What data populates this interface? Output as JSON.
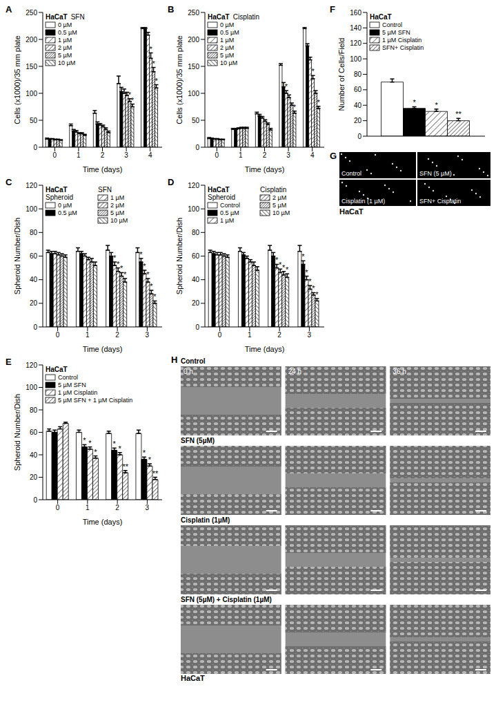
{
  "chart_data": [
    {
      "type": "bar",
      "panel_label": "A",
      "title": "HaCaT",
      "subtitle": "SFN",
      "x_label": "Time (days)",
      "y_label": "Cells (x1000)/35 mm plate",
      "categories": [
        "0",
        "1",
        "2",
        "3",
        "4"
      ],
      "ylim": [
        0,
        250
      ],
      "yticks": [
        0,
        50,
        100,
        150,
        200,
        250
      ],
      "series": [
        {
          "name": "0 µM",
          "color": "#ffffff",
          "values": [
            15,
            40,
            63,
            118,
            220
          ],
          "errors": [
            2,
            3,
            5,
            14,
            2
          ],
          "significance": [
            null,
            null,
            null,
            null,
            null
          ]
        },
        {
          "name": "0.5 µM",
          "color": "#000000",
          "values": [
            15,
            30,
            43,
            103,
            220
          ],
          "errors": [
            1,
            3,
            4,
            8,
            2
          ],
          "significance": [
            null,
            null,
            null,
            null,
            null
          ]
        },
        {
          "name": "1 µM",
          "color": "#ffffff",
          "values": [
            15,
            28,
            41,
            100,
            208
          ],
          "errors": [
            1,
            3,
            3,
            8,
            5
          ],
          "significance": [
            null,
            null,
            null,
            null,
            null
          ]
        },
        {
          "name": "2 µM",
          "color": "#ffffff",
          "values": [
            14,
            25,
            38,
            96,
            165
          ],
          "errors": [
            1,
            2,
            3,
            6,
            10
          ],
          "significance": [
            null,
            null,
            null,
            null,
            "*"
          ]
        },
        {
          "name": "5 µM",
          "color": "#ffffff",
          "values": [
            14,
            25,
            33,
            85,
            140
          ],
          "errors": [
            1,
            2,
            3,
            5,
            8
          ],
          "significance": [
            null,
            null,
            null,
            "*",
            "*"
          ]
        },
        {
          "name": "10 µM",
          "color": "#ffffff",
          "values": [
            13,
            22,
            27,
            75,
            110
          ],
          "errors": [
            1,
            2,
            3,
            5,
            6
          ],
          "significance": [
            null,
            null,
            null,
            "*",
            "*"
          ]
        }
      ]
    },
    {
      "type": "bar",
      "panel_label": "B",
      "title": "HaCaT",
      "subtitle": "Cisplatin",
      "x_label": "Time (days)",
      "y_label": "Cells (x1000)/35 mm plate",
      "categories": [
        "0",
        "1",
        "2",
        "3",
        "4"
      ],
      "ylim": [
        0,
        250
      ],
      "yticks": [
        0,
        50,
        100,
        150,
        200,
        250
      ],
      "series": [
        {
          "name": "0 µM",
          "color": "#ffffff",
          "values": [
            16,
            33,
            62,
            152,
            220
          ],
          "errors": [
            2,
            2,
            3,
            3,
            2
          ],
          "significance": [
            null,
            null,
            null,
            null,
            null
          ]
        },
        {
          "name": "0.5 µM",
          "color": "#000000",
          "values": [
            16,
            33,
            58,
            112,
            188
          ],
          "errors": [
            1,
            2,
            3,
            8,
            4
          ],
          "significance": [
            null,
            null,
            null,
            null,
            null
          ]
        },
        {
          "name": "1 µM",
          "color": "#ffffff",
          "values": [
            15,
            34,
            54,
            100,
            162
          ],
          "errors": [
            1,
            2,
            3,
            5,
            5
          ],
          "significance": [
            null,
            null,
            null,
            "*",
            null
          ]
        },
        {
          "name": "2 µM",
          "color": "#ffffff",
          "values": [
            15,
            35,
            48,
            92,
            127
          ],
          "errors": [
            1,
            2,
            3,
            5,
            6
          ],
          "significance": [
            null,
            null,
            null,
            null,
            "*"
          ]
        },
        {
          "name": "5 µM",
          "color": "#ffffff",
          "values": [
            14,
            35,
            42,
            78,
            100
          ],
          "errors": [
            1,
            2,
            3,
            4,
            5
          ],
          "significance": [
            null,
            null,
            null,
            null,
            null
          ]
        },
        {
          "name": "10 µM",
          "color": "#ffffff",
          "values": [
            14,
            35,
            32,
            63,
            72
          ],
          "errors": [
            1,
            2,
            3,
            4,
            4
          ],
          "significance": [
            null,
            null,
            null,
            "*",
            "*"
          ]
        }
      ]
    },
    {
      "type": "bar",
      "panel_label": "C",
      "title": "HaCaT",
      "subtitle": "SFN",
      "annotations": [
        "Spheroid"
      ],
      "x_label": "Time (days)",
      "y_label": "Spheroid Number/Dish",
      "categories": [
        "0",
        "1",
        "2",
        "3"
      ],
      "ylim": [
        0,
        120
      ],
      "yticks": [
        0,
        20,
        40,
        60,
        80,
        100,
        120
      ],
      "series": [
        {
          "name": "0 µM",
          "color": "#ffffff",
          "values": [
            63,
            64,
            65,
            63
          ],
          "errors": [
            2,
            3,
            4,
            4
          ],
          "significance": [
            null,
            null,
            null,
            null
          ]
        },
        {
          "name": "0.5 µM",
          "color": "#000000",
          "values": [
            62,
            62,
            60,
            55
          ],
          "errors": [
            2,
            2,
            3,
            3
          ],
          "significance": [
            null,
            null,
            null,
            "*"
          ]
        },
        {
          "name": "1 µM",
          "color": "#ffffff",
          "values": [
            62,
            60,
            52,
            45
          ],
          "errors": [
            2,
            2,
            3,
            3
          ],
          "significance": [
            null,
            null,
            "*",
            "*"
          ]
        },
        {
          "name": "2 µM",
          "color": "#ffffff",
          "values": [
            61,
            57,
            47,
            38
          ],
          "errors": [
            2,
            2,
            3,
            3
          ],
          "significance": [
            null,
            null,
            "*",
            "*"
          ]
        },
        {
          "name": "5 µM",
          "color": "#ffffff",
          "values": [
            60,
            55,
            43,
            28
          ],
          "errors": [
            2,
            3,
            3,
            3
          ],
          "significance": [
            null,
            null,
            "*",
            "*"
          ]
        },
        {
          "name": "10 µM",
          "color": "#ffffff",
          "values": [
            59,
            52,
            38,
            20
          ],
          "errors": [
            2,
            3,
            3,
            2
          ],
          "significance": [
            null,
            null,
            "*",
            "*"
          ]
        }
      ]
    },
    {
      "type": "bar",
      "panel_label": "D",
      "title": "HaCaT",
      "subtitle": "Cisplatin",
      "annotations": [
        "Spheroid"
      ],
      "x_label": "Time (days)",
      "y_label": "Spheroid Number/Dish",
      "categories": [
        "0",
        "1",
        "2",
        "3"
      ],
      "ylim": [
        0,
        120
      ],
      "yticks": [
        0,
        20,
        40,
        60,
        80,
        100,
        120
      ],
      "series": [
        {
          "name": "Control",
          "color": "#ffffff",
          "values": [
            63,
            64,
            65,
            64
          ],
          "errors": [
            2,
            3,
            4,
            5
          ],
          "significance": [
            null,
            null,
            null,
            null
          ]
        },
        {
          "name": "0.5 µM",
          "color": "#000000",
          "values": [
            62,
            61,
            60,
            53
          ],
          "errors": [
            2,
            2,
            3,
            3
          ],
          "significance": [
            null,
            null,
            null,
            "*"
          ]
        },
        {
          "name": "1 µM",
          "color": "#ffffff",
          "values": [
            61,
            58,
            50,
            40
          ],
          "errors": [
            2,
            2,
            3,
            3
          ],
          "significance": [
            null,
            null,
            "*",
            "*"
          ]
        },
        {
          "name": "2 µM",
          "color": "#ffffff",
          "values": [
            61,
            55,
            46,
            32
          ],
          "errors": [
            2,
            2,
            3,
            3
          ],
          "significance": [
            null,
            null,
            "*",
            "*"
          ]
        },
        {
          "name": "5 µM",
          "color": "#ffffff",
          "values": [
            60,
            52,
            44,
            27
          ],
          "errors": [
            2,
            3,
            3,
            2
          ],
          "significance": [
            null,
            null,
            "*",
            "*"
          ]
        },
        {
          "name": "10 µM",
          "color": "#ffffff",
          "values": [
            59,
            48,
            42,
            22
          ],
          "errors": [
            2,
            3,
            3,
            2
          ],
          "significance": [
            null,
            null,
            "*",
            "*"
          ]
        }
      ]
    },
    {
      "type": "bar",
      "panel_label": "E",
      "title": "HaCaT",
      "x_label": "Time (days)",
      "y_label": "Spheroid Number/Dish",
      "categories": [
        "0",
        "1",
        "2",
        "3"
      ],
      "ylim": [
        0,
        120
      ],
      "yticks": [
        0,
        20,
        40,
        60,
        80,
        100,
        120
      ],
      "series": [
        {
          "name": "Control",
          "color": "#ffffff",
          "values": [
            61,
            60,
            59,
            59
          ],
          "errors": [
            2,
            2,
            2,
            3
          ],
          "significance": [
            null,
            null,
            null,
            null
          ]
        },
        {
          "name": "5 µM SFN",
          "color": "#000000",
          "values": [
            60,
            47,
            44,
            36
          ],
          "errors": [
            2,
            2,
            2,
            2
          ],
          "significance": [
            null,
            "*",
            "*",
            "*"
          ]
        },
        {
          "name": "1 µM Cisplatin",
          "color": "#ffffff",
          "values": [
            63,
            45,
            40,
            30
          ],
          "errors": [
            2,
            2,
            2,
            2
          ],
          "significance": [
            null,
            "*",
            "*",
            "*"
          ]
        },
        {
          "name": "5 µM SFN + 1 µM Cisplatin",
          "color": "#ffffff",
          "values": [
            68,
            37,
            24,
            18
          ],
          "errors": [
            1,
            2,
            2,
            2
          ],
          "significance": [
            null,
            "*",
            "**",
            "**"
          ]
        }
      ]
    },
    {
      "type": "bar",
      "panel_label": "F",
      "title": "HaCaT",
      "y_label": "Number of Cells/Field",
      "tick_labels": "y",
      "categories": [
        null
      ],
      "ylim": [
        0,
        160
      ],
      "yticks": [
        0,
        20,
        40,
        60,
        80,
        100,
        120,
        140,
        160
      ],
      "series": [
        {
          "name": "Control",
          "color": "#ffffff",
          "values": [
            70
          ],
          "errors": [
            4
          ],
          "significance": [
            null
          ]
        },
        {
          "name": "5 µM SFN",
          "color": "#000000",
          "values": [
            36
          ],
          "errors": [
            2
          ],
          "significance": [
            "*"
          ]
        },
        {
          "name": "1 µM Cisplatin",
          "color": "#ffffff",
          "values": [
            32
          ],
          "errors": [
            3
          ],
          "significance": [
            "*"
          ]
        },
        {
          "name": "SFN+ Cisplatin",
          "color": "#ffffff",
          "values": [
            20
          ],
          "errors": [
            3
          ],
          "significance": [
            "**"
          ]
        }
      ]
    }
  ],
  "image_panels": {
    "G": {
      "panel_label": "G",
      "labels": [
        "Control",
        "SFN (5 µM)",
        "Cisplatin (1 µM)",
        "SFN+ Cisplatin"
      ],
      "caption": "HaCaT"
    },
    "H": {
      "panel_label": "H",
      "columns": [
        "0 h",
        "24 h",
        "36 h"
      ],
      "rows": [
        "Control",
        "SFN (5µM)",
        "Cisplatin (1µM)",
        "SFN (5µM) + Cisplatin (1µM)"
      ],
      "caption": "HaCaT"
    }
  }
}
